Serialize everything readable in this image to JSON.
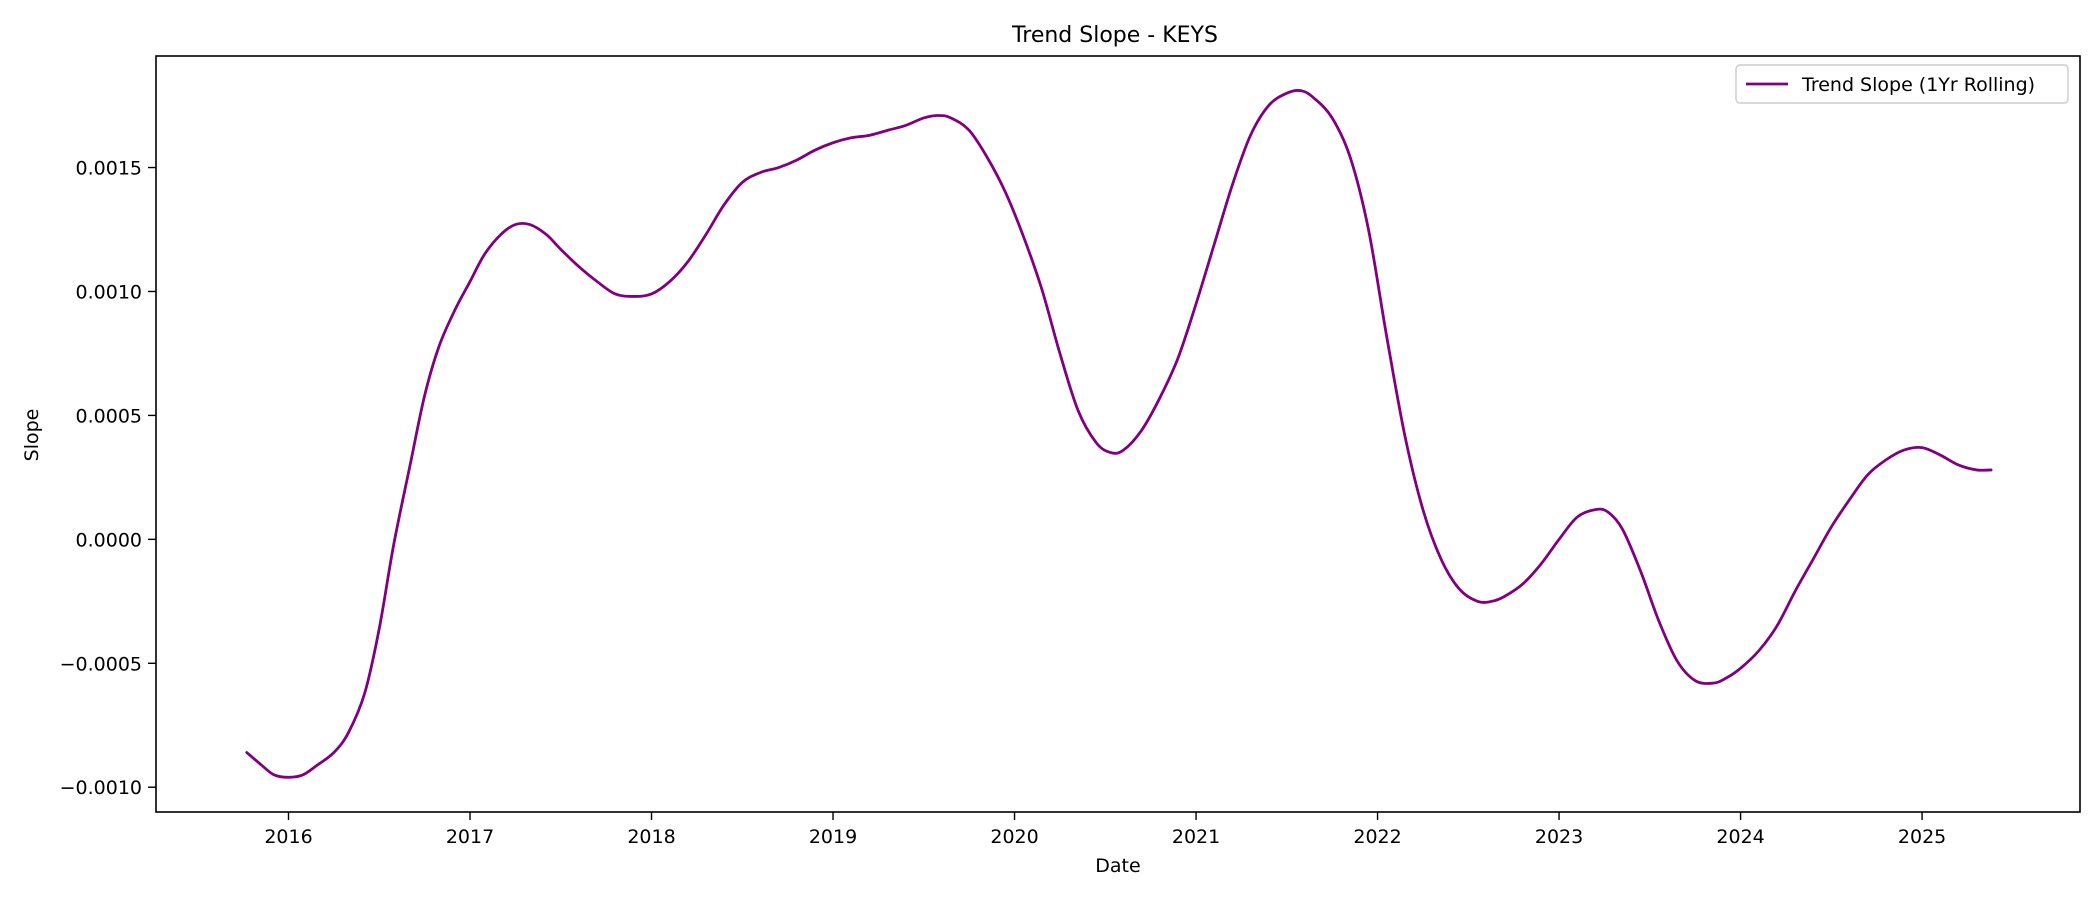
{
  "chart_data": {
    "type": "line",
    "title": "Trend Slope - KEYS",
    "xlabel": "Date",
    "ylabel": "Slope",
    "x_ticks": [
      2016,
      2017,
      2018,
      2019,
      2020,
      2021,
      2022,
      2023,
      2024,
      2025
    ],
    "x_tick_labels": [
      "2016",
      "2017",
      "2018",
      "2019",
      "2020",
      "2021",
      "2022",
      "2023",
      "2024",
      "2025"
    ],
    "y_ticks": [
      -0.001,
      -0.0005,
      0.0,
      0.0005,
      0.001,
      0.0015
    ],
    "y_tick_labels": [
      "−0.0010",
      "−0.0005",
      "0.0000",
      "0.0005",
      "0.0010",
      "0.0015"
    ],
    "xlim": [
      2015.27,
      2025.87
    ],
    "ylim": [
      -0.0011,
      0.00195
    ],
    "grid": false,
    "legend_position": "top-right",
    "color": "#800080",
    "series": [
      {
        "name": "Trend Slope (1Yr Rolling)",
        "x": [
          2015.77,
          2015.85,
          2015.92,
          2016.0,
          2016.08,
          2016.16,
          2016.25,
          2016.33,
          2016.42,
          2016.5,
          2016.58,
          2016.67,
          2016.75,
          2016.83,
          2016.92,
          2017.0,
          2017.08,
          2017.17,
          2017.25,
          2017.33,
          2017.42,
          2017.5,
          2017.6,
          2017.7,
          2017.8,
          2017.9,
          2018.0,
          2018.1,
          2018.2,
          2018.3,
          2018.4,
          2018.5,
          2018.6,
          2018.7,
          2018.8,
          2018.9,
          2019.0,
          2019.1,
          2019.2,
          2019.3,
          2019.4,
          2019.5,
          2019.58,
          2019.65,
          2019.75,
          2019.85,
          2019.95,
          2020.05,
          2020.15,
          2020.25,
          2020.35,
          2020.45,
          2020.53,
          2020.6,
          2020.7,
          2020.8,
          2020.9,
          2021.0,
          2021.1,
          2021.2,
          2021.3,
          2021.4,
          2021.5,
          2021.58,
          2021.65,
          2021.75,
          2021.85,
          2021.95,
          2022.05,
          2022.15,
          2022.25,
          2022.35,
          2022.45,
          2022.55,
          2022.63,
          2022.7,
          2022.8,
          2022.9,
          2023.0,
          2023.1,
          2023.2,
          2023.27,
          2023.35,
          2023.45,
          2023.55,
          2023.65,
          2023.75,
          2023.85,
          2023.92,
          2024.0,
          2024.1,
          2024.2,
          2024.3,
          2024.4,
          2024.5,
          2024.6,
          2024.7,
          2024.8,
          2024.9,
          2025.0,
          2025.1,
          2025.2,
          2025.3,
          2025.38
        ],
        "values": [
          -0.00086,
          -0.00091,
          -0.00095,
          -0.00096,
          -0.00095,
          -0.00091,
          -0.00086,
          -0.00078,
          -0.00062,
          -0.00036,
          -2e-05,
          0.0003,
          0.00058,
          0.00078,
          0.00093,
          0.00104,
          0.00115,
          0.00123,
          0.00127,
          0.00127,
          0.00123,
          0.00117,
          0.0011,
          0.00104,
          0.00099,
          0.00098,
          0.00099,
          0.00104,
          0.00112,
          0.00123,
          0.00135,
          0.00144,
          0.00148,
          0.0015,
          0.00153,
          0.00157,
          0.0016,
          0.00162,
          0.00163,
          0.00165,
          0.00167,
          0.0017,
          0.00171,
          0.0017,
          0.00165,
          0.00154,
          0.0014,
          0.00122,
          0.00101,
          0.00075,
          0.00052,
          0.00039,
          0.00035,
          0.00036,
          0.00044,
          0.00057,
          0.00073,
          0.00095,
          0.00119,
          0.00143,
          0.00163,
          0.00175,
          0.0018,
          0.00181,
          0.00178,
          0.0017,
          0.00154,
          0.00125,
          0.00082,
          0.00042,
          0.00012,
          -8e-05,
          -0.0002,
          -0.00025,
          -0.00025,
          -0.00023,
          -0.00018,
          -0.0001,
          0.0,
          9e-05,
          0.00012,
          0.00011,
          4e-05,
          -0.00013,
          -0.00033,
          -0.00049,
          -0.00057,
          -0.00058,
          -0.00056,
          -0.00052,
          -0.00045,
          -0.00035,
          -0.00021,
          -8e-05,
          5e-05,
          0.00016,
          0.00026,
          0.00032,
          0.00036,
          0.00037,
          0.00034,
          0.0003,
          0.00028,
          0.00028
        ]
      }
    ]
  }
}
